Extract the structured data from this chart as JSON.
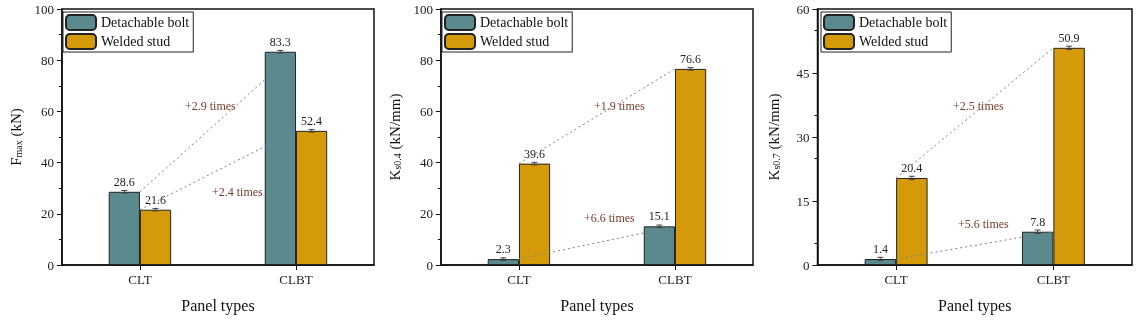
{
  "chart_data": [
    {
      "type": "bar",
      "xlabel": "Panel types",
      "ylabel": "F$_{max}$ (kN)",
      "categories": [
        "CLT",
        "CLBT"
      ],
      "ylim": [
        0,
        100
      ],
      "yticks": [
        0,
        20,
        40,
        60,
        80,
        100
      ],
      "legend": "top left",
      "grid": false,
      "series": [
        {
          "name": "Detachable bolt",
          "color": "#5b8a8e",
          "values": [
            28.6,
            83.3
          ],
          "value_labels": [
            "28.6",
            "83.3"
          ],
          "errors": [
            0.5,
            0.5
          ]
        },
        {
          "name": "Welded stud",
          "color": "#d49a0a",
          "values": [
            21.6,
            52.4
          ],
          "value_labels": [
            "21.6",
            "52.4"
          ],
          "errors": [
            0.5,
            0.5
          ]
        },
        {
          "type": "line",
          "color": "#808080",
          "line_style": "dotted",
          "marker": "none",
          "x": [
            "CLT",
            "CLBT"
          ],
          "values": [
            28.6,
            83.3
          ]
        },
        {
          "type": "line",
          "color": "#808080",
          "line_style": "dotted",
          "marker": "none",
          "x": [
            "CLT",
            "CLBT"
          ],
          "values": [
            21.6,
            52.4
          ]
        }
      ],
      "annotations": [
        "+2.9 times",
        "+2.4 times"
      ]
    },
    {
      "type": "bar",
      "xlabel": "Panel types",
      "ylabel": "K$_{s0.4}$ (kN/mm)",
      "categories": [
        "CLT",
        "CLBT"
      ],
      "ylim": [
        0,
        100
      ],
      "yticks": [
        0,
        20,
        40,
        60,
        80,
        100
      ],
      "legend": "top left",
      "grid": false,
      "series": [
        {
          "name": "Detachable bolt",
          "color": "#5b8a8e",
          "values": [
            2.3,
            15.1
          ],
          "value_labels": [
            "2.3",
            "15.1"
          ],
          "errors": [
            0.5,
            0.5
          ]
        },
        {
          "name": "Welded stud",
          "color": "#d49a0a",
          "values": [
            39.6,
            76.6
          ],
          "value_labels": [
            "39.6",
            "76.6"
          ],
          "errors": [
            0.5,
            0.5
          ]
        },
        {
          "type": "line",
          "color": "#808080",
          "line_style": "dotted",
          "marker": "none",
          "x": [
            "CLT",
            "CLBT"
          ],
          "values": [
            2.3,
            15.1
          ]
        },
        {
          "type": "line",
          "color": "#808080",
          "line_style": "dotted",
          "marker": "none",
          "x": [
            "CLT",
            "CLBT"
          ],
          "values": [
            39.6,
            76.6
          ]
        }
      ],
      "annotations": [
        "+1.9 times",
        "+6.6 times"
      ]
    },
    {
      "type": "bar",
      "xlabel": "Panel types",
      "ylabel": "K$_{s0.7}$ (kN/mm)",
      "categories": [
        "CLT",
        "CLBT"
      ],
      "ylim": [
        0,
        60
      ],
      "yticks": [
        0,
        15,
        30,
        45,
        60
      ],
      "legend": "top left",
      "grid": false,
      "series": [
        {
          "name": "Detachable bolt",
          "color": "#5b8a8e",
          "values": [
            1.4,
            7.8
          ],
          "value_labels": [
            "1.4",
            "7.8"
          ],
          "errors": [
            0.4,
            0.4
          ]
        },
        {
          "name": "Welded stud",
          "color": "#d49a0a",
          "values": [
            20.4,
            50.9
          ],
          "value_labels": [
            "20.4",
            "50.9"
          ],
          "errors": [
            0.4,
            0.4
          ]
        },
        {
          "type": "line",
          "color": "#808080",
          "line_style": "dotted",
          "marker": "none",
          "x": [
            "CLT",
            "CLBT"
          ],
          "values": [
            1.4,
            7.8
          ]
        },
        {
          "type": "line",
          "color": "#808080",
          "line_style": "dotted",
          "marker": "none",
          "x": [
            "CLT",
            "CLBT"
          ],
          "values": [
            20.4,
            50.9
          ]
        }
      ],
      "annotations": [
        "+2.5 times",
        "+5.6 times"
      ]
    }
  ]
}
